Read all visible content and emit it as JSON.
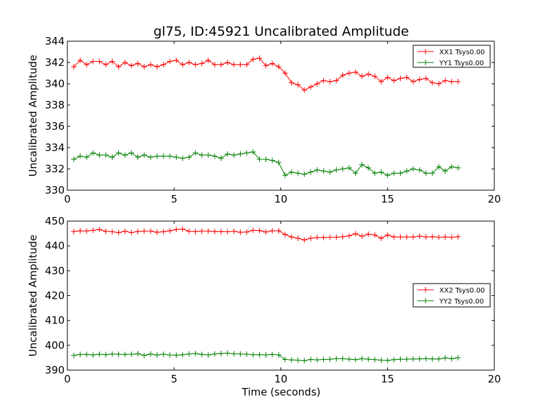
{
  "colors": {
    "xx": "#ff0000",
    "yy": "#008000"
  },
  "chart_data": [
    {
      "type": "line",
      "title": "gl75, ID:45921 Uncalibrated Amplitude",
      "xlabel": "",
      "ylabel": "Uncalibrated Amplitude",
      "xlim": [
        0,
        20
      ],
      "ylim": [
        330,
        344
      ],
      "xticks": [
        "0",
        "5",
        "10",
        "15",
        "20"
      ],
      "yticks": [
        "330",
        "332",
        "334",
        "336",
        "338",
        "340",
        "342",
        "344"
      ],
      "legend_position": "top-right",
      "marker": "plus",
      "x": [
        0.3,
        0.6,
        0.9,
        1.2,
        1.5,
        1.8,
        2.1,
        2.4,
        2.7,
        3.0,
        3.3,
        3.6,
        3.9,
        4.2,
        4.5,
        4.8,
        5.1,
        5.4,
        5.7,
        6.0,
        6.3,
        6.6,
        6.9,
        7.2,
        7.5,
        7.8,
        8.1,
        8.4,
        8.7,
        9.0,
        9.3,
        9.6,
        9.9,
        10.2,
        10.5,
        10.8,
        11.1,
        11.4,
        11.7,
        12.0,
        12.3,
        12.6,
        12.9,
        13.2,
        13.5,
        13.8,
        14.1,
        14.4,
        14.7,
        15.0,
        15.3,
        15.6,
        15.9,
        16.2,
        16.5,
        16.8,
        17.1,
        17.4,
        17.7,
        18.0,
        18.3
      ],
      "series": [
        {
          "name": "XX1 Tsys0.00",
          "color": "xx",
          "values": [
            341.6,
            342.2,
            341.8,
            342.1,
            342.1,
            341.8,
            342.1,
            341.6,
            342.0,
            341.7,
            341.9,
            341.6,
            341.8,
            341.6,
            341.8,
            342.1,
            342.2,
            341.8,
            342.0,
            341.8,
            341.9,
            342.2,
            341.8,
            341.8,
            342.0,
            341.8,
            341.8,
            341.8,
            342.3,
            342.4,
            341.7,
            341.9,
            341.6,
            341.0,
            340.1,
            339.9,
            339.4,
            339.7,
            340.0,
            340.3,
            340.2,
            340.3,
            340.8,
            341.0,
            341.1,
            340.7,
            340.9,
            340.7,
            340.2,
            340.6,
            340.3,
            340.5,
            340.6,
            340.2,
            340.4,
            340.5,
            340.1,
            340.0,
            340.3,
            340.2,
            340.2
          ]
        },
        {
          "name": "YY1 Tsys0.00",
          "color": "yy",
          "values": [
            332.9,
            333.2,
            333.1,
            333.5,
            333.3,
            333.3,
            333.1,
            333.5,
            333.3,
            333.5,
            333.1,
            333.3,
            333.1,
            333.2,
            333.2,
            333.2,
            333.1,
            333.0,
            333.1,
            333.5,
            333.3,
            333.3,
            333.2,
            333.0,
            333.4,
            333.3,
            333.4,
            333.5,
            333.6,
            332.9,
            332.9,
            332.8,
            332.6,
            331.4,
            331.7,
            331.6,
            331.5,
            331.7,
            331.9,
            331.8,
            331.7,
            331.9,
            332.0,
            332.1,
            331.6,
            332.4,
            332.1,
            331.6,
            331.7,
            331.4,
            331.6,
            331.6,
            331.8,
            332.0,
            331.9,
            331.6,
            331.6,
            332.2,
            331.8,
            332.2,
            332.1
          ]
        }
      ]
    },
    {
      "type": "line",
      "title": "",
      "xlabel": "Time (seconds)",
      "ylabel": "Uncalibrated Amplitude",
      "xlim": [
        0,
        20
      ],
      "ylim": [
        390,
        450
      ],
      "xticks": [
        "0",
        "5",
        "10",
        "15",
        "20"
      ],
      "yticks": [
        "390",
        "400",
        "410",
        "420",
        "430",
        "440",
        "450"
      ],
      "legend_position": "center-right",
      "marker": "plus",
      "x": [
        0.3,
        0.6,
        0.9,
        1.2,
        1.5,
        1.8,
        2.1,
        2.4,
        2.7,
        3.0,
        3.3,
        3.6,
        3.9,
        4.2,
        4.5,
        4.8,
        5.1,
        5.4,
        5.7,
        6.0,
        6.3,
        6.6,
        6.9,
        7.2,
        7.5,
        7.8,
        8.1,
        8.4,
        8.7,
        9.0,
        9.3,
        9.6,
        9.9,
        10.2,
        10.5,
        10.8,
        11.1,
        11.4,
        11.7,
        12.0,
        12.3,
        12.6,
        12.9,
        13.2,
        13.5,
        13.8,
        14.1,
        14.4,
        14.7,
        15.0,
        15.3,
        15.6,
        15.9,
        16.2,
        16.5,
        16.8,
        17.1,
        17.4,
        17.7,
        18.0,
        18.3
      ],
      "series": [
        {
          "name": "XX2 Tsys0.00",
          "color": "xx",
          "values": [
            445.8,
            446.1,
            446.0,
            446.3,
            446.6,
            445.9,
            445.7,
            445.4,
            445.9,
            445.4,
            445.8,
            446.0,
            446.0,
            445.5,
            445.7,
            446.1,
            446.6,
            446.8,
            445.9,
            445.8,
            446.0,
            446.0,
            445.8,
            445.8,
            445.7,
            445.9,
            445.5,
            445.6,
            446.3,
            446.2,
            445.6,
            446.1,
            446.1,
            444.6,
            443.6,
            443.1,
            442.4,
            443.1,
            443.4,
            443.4,
            443.5,
            443.5,
            443.7,
            444.1,
            444.9,
            443.9,
            444.7,
            444.4,
            443.1,
            444.4,
            443.6,
            443.6,
            443.6,
            443.6,
            443.9,
            443.6,
            443.7,
            443.5,
            443.6,
            443.5,
            443.7
          ]
        },
        {
          "name": "YY2 Tsys0.00",
          "color": "yy",
          "values": [
            395.9,
            396.3,
            396.3,
            396.1,
            396.4,
            396.2,
            396.5,
            396.4,
            396.3,
            396.4,
            396.6,
            395.9,
            396.5,
            396.1,
            396.4,
            396.1,
            396.0,
            396.2,
            396.5,
            396.7,
            396.3,
            396.1,
            396.5,
            396.7,
            396.8,
            396.6,
            396.5,
            396.4,
            396.2,
            396.2,
            396.1,
            396.3,
            396.1,
            394.3,
            394.1,
            394.0,
            393.8,
            394.3,
            394.1,
            394.3,
            394.4,
            394.6,
            394.6,
            394.4,
            394.2,
            394.6,
            394.4,
            394.2,
            394.0,
            393.9,
            394.2,
            394.4,
            394.4,
            394.5,
            394.5,
            394.6,
            394.5,
            394.5,
            394.9,
            394.6,
            395.0
          ]
        }
      ]
    }
  ]
}
